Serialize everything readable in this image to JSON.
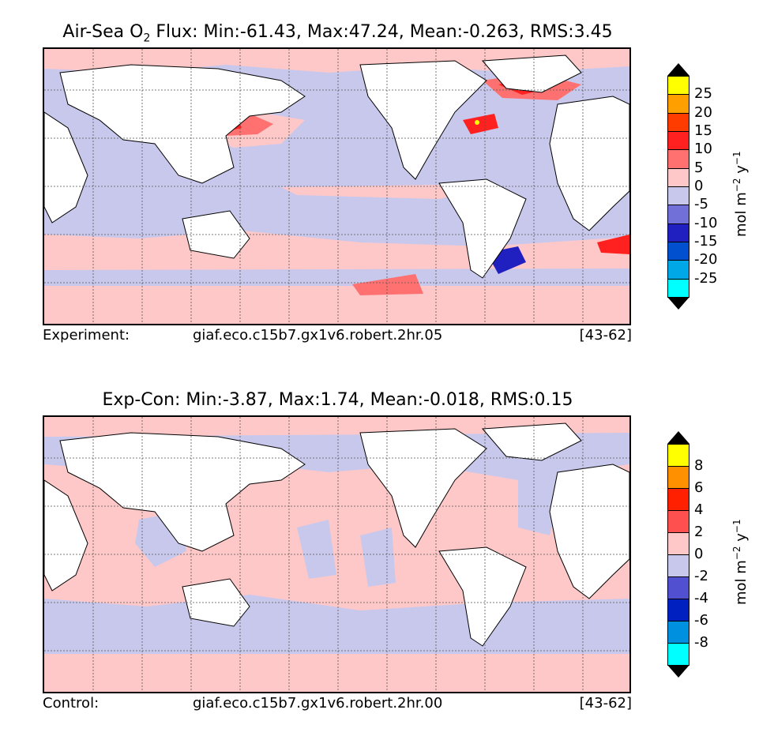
{
  "panel1": {
    "title_prefix": "Air-Sea O",
    "title_sub": "2",
    "title_suffix": " Flux: Min:-61.43, Max:47.24, Mean:-0.263, RMS:3.45",
    "footer_label": "Experiment:",
    "footer_run": "giaf.eco.c15b7.gx1v6.robert.2hr.05",
    "footer_years": "[43-62]",
    "colorbar": {
      "ticks": [
        "25",
        "20",
        "15",
        "10",
        "5",
        "0",
        "-5",
        "-10",
        "-15",
        "-20",
        "-25"
      ],
      "colors": [
        "#ffff00",
        "#ffa000",
        "#ff3c00",
        "#ff2020",
        "#ff7070",
        "#ffc8c8",
        "#c8c8ec",
        "#7070d8",
        "#2020c0",
        "#0050d0",
        "#00a8e8",
        "#00ffff"
      ]
    }
  },
  "panel2": {
    "title": "Exp-Con: Min:-3.87, Max:1.74, Mean:-0.018, RMS:0.15",
    "footer_label": "Control:",
    "footer_run": "giaf.eco.c15b7.gx1v6.robert.2hr.00",
    "footer_years": "[43-62]",
    "colorbar": {
      "ticks": [
        "8",
        "6",
        "4",
        "2",
        "0",
        "-2",
        "-4",
        "-6",
        "-8"
      ],
      "colors": [
        "#ffff00",
        "#ff9000",
        "#ff2000",
        "#ff5050",
        "#ffc8c8",
        "#c8c8ec",
        "#5050d0",
        "#0020c0",
        "#0090e0",
        "#00ffff"
      ]
    }
  },
  "units": {
    "base": "mol m",
    "exp1": "−2",
    "mid": " y",
    "exp2": "−1"
  },
  "colors": {
    "ocean_negative": "#c8c8ec",
    "ocean_positive": "#ffc8c8",
    "land": "#ffffff",
    "strong_positive": "#ff2020",
    "strong_negative": "#2020c0"
  }
}
